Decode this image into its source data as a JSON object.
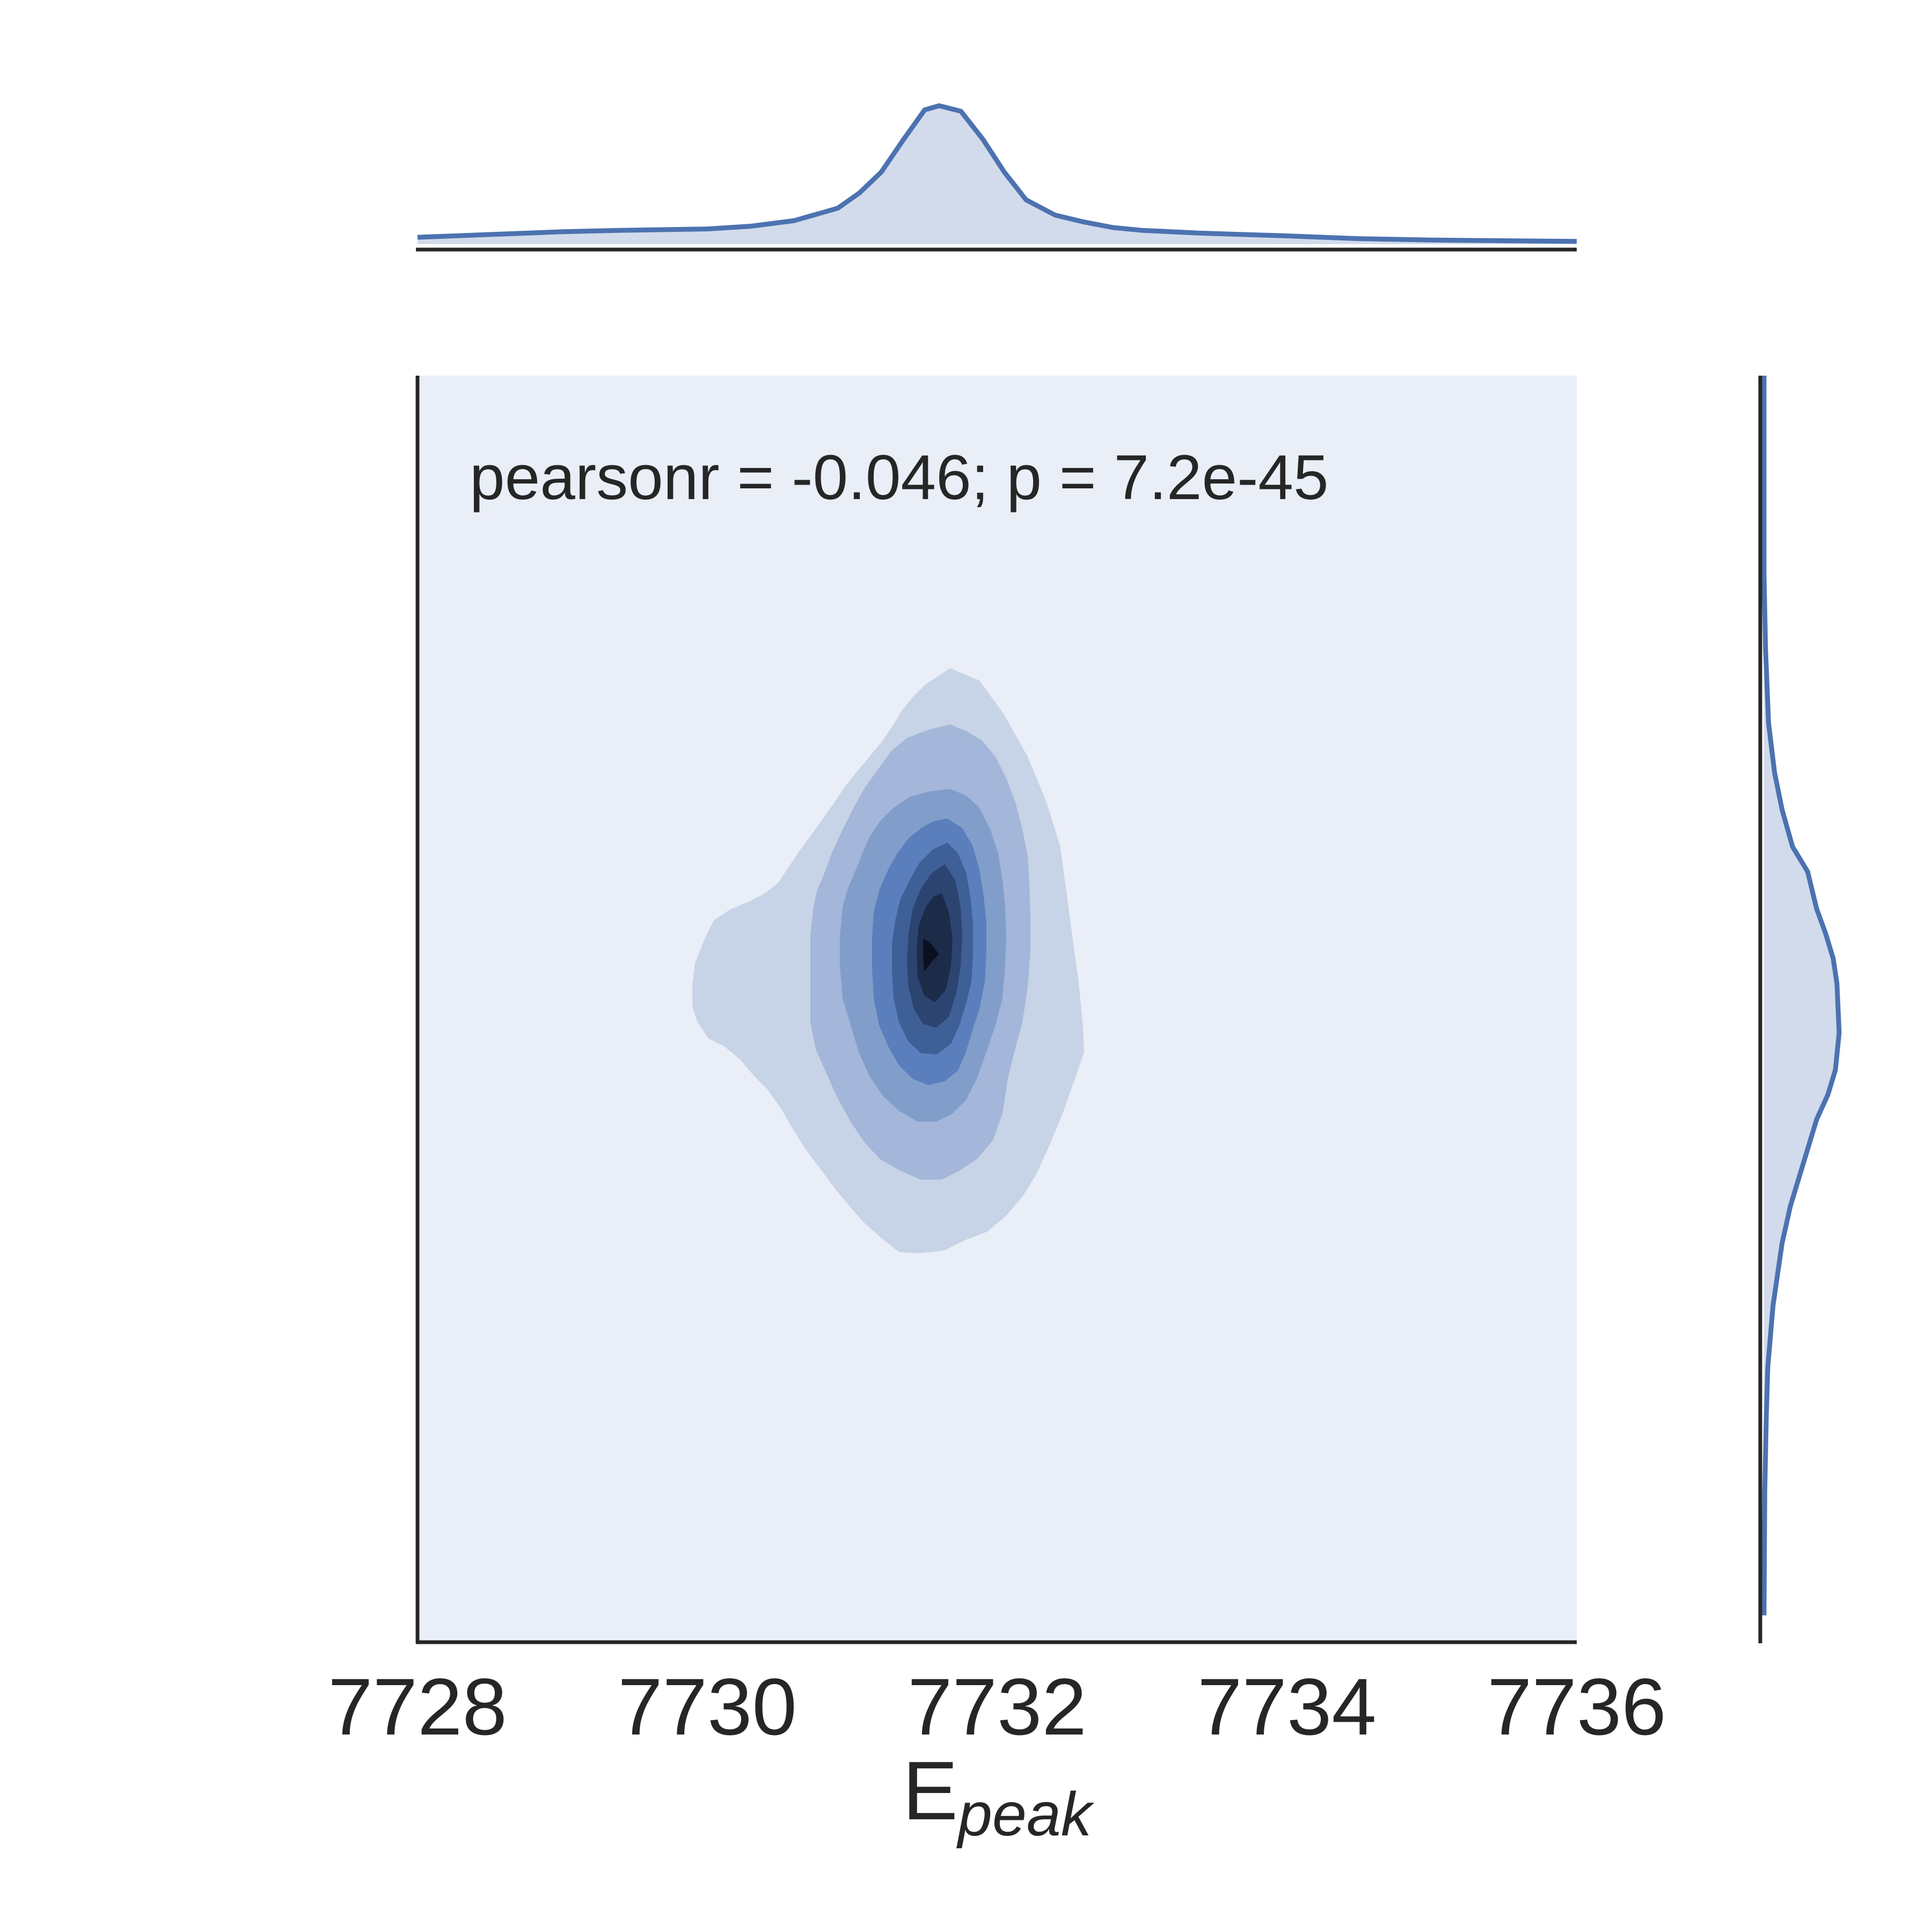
{
  "chart_data": {
    "type": "kde_joint",
    "annotation": "pearsonr = -0.046; p = 7.2e-45",
    "xlabel": {
      "main": "E",
      "sub": "peak"
    },
    "ylabel": "",
    "xlim": [
      7728,
      7736
    ],
    "x_ticks": [
      7728,
      7730,
      7732,
      7734,
      7736
    ],
    "y_ticks": [],
    "grid": false,
    "colors": {
      "line": "#4c72b0",
      "fill": "#d2dbeb",
      "plot_background": "#eaeef7",
      "axis": "#262626",
      "contour_levels": [
        "#c7d3e6",
        "#a4b6d9",
        "#819ecb",
        "#5b7fbc",
        "#3f5f97",
        "#2b4470",
        "#1c2b48",
        "#0b1020"
      ]
    },
    "joint_density_peak": {
      "x": 7731.6
    },
    "x_marginal_density": {
      "x": [
        7728.0,
        7729.0,
        7729.4,
        7730.0,
        7730.3,
        7730.6,
        7730.9,
        7731.05,
        7731.2,
        7731.35,
        7731.5,
        7731.6,
        7731.75,
        7731.9,
        7732.05,
        7732.2,
        7732.4,
        7732.6,
        7732.8,
        7733.0,
        7733.4,
        7734.0,
        7734.5,
        7735.0,
        7736.0
      ],
      "density": [
        0.05,
        0.09,
        0.1,
        0.11,
        0.13,
        0.17,
        0.26,
        0.37,
        0.52,
        0.75,
        0.97,
        1.0,
        0.96,
        0.76,
        0.52,
        0.32,
        0.21,
        0.16,
        0.12,
        0.1,
        0.08,
        0.06,
        0.04,
        0.03,
        0.02
      ]
    },
    "y_marginal_density": {
      "position": [
        0.0,
        0.16,
        0.22,
        0.28,
        0.32,
        0.35,
        0.38,
        0.4,
        0.43,
        0.45,
        0.47,
        0.49,
        0.53,
        0.56,
        0.58,
        0.6,
        0.63,
        0.67,
        0.7,
        0.75,
        0.8,
        0.84,
        0.9,
        1.0
      ],
      "density": [
        0.0,
        0.0,
        0.02,
        0.06,
        0.14,
        0.24,
        0.38,
        0.58,
        0.7,
        0.82,
        0.92,
        0.97,
        1.0,
        0.95,
        0.85,
        0.7,
        0.55,
        0.35,
        0.24,
        0.12,
        0.05,
        0.03,
        0.01,
        0.0
      ]
    }
  }
}
